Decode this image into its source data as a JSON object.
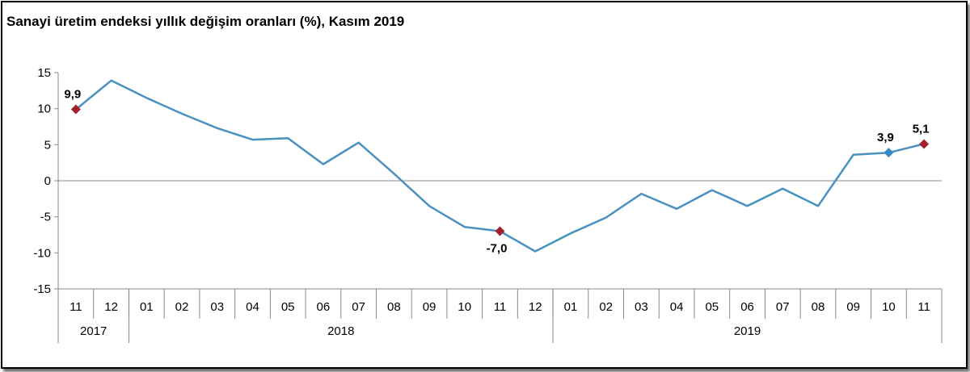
{
  "chart_data": {
    "type": "line",
    "title": "Sanayi üretim endeksi yıllık değişim oranları (%), Kasım 2019",
    "ylim": [
      -15,
      15
    ],
    "yticks": [
      "15",
      "10",
      "5",
      "0",
      "-5",
      "-10",
      "-15"
    ],
    "ytick_values": [
      15,
      10,
      5,
      0,
      -5,
      -10,
      -15
    ],
    "categories": [
      "11",
      "12",
      "01",
      "02",
      "03",
      "04",
      "05",
      "06",
      "07",
      "08",
      "09",
      "10",
      "11",
      "12",
      "01",
      "02",
      "03",
      "04",
      "05",
      "06",
      "07",
      "08",
      "09",
      "10",
      "11"
    ],
    "year_groups": [
      {
        "label": "2017",
        "count": 2
      },
      {
        "label": "2018",
        "count": 12
      },
      {
        "label": "2019",
        "count": 11
      }
    ],
    "series": [
      {
        "color": "#4a90c0",
        "values": [
          9.9,
          13.9,
          11.5,
          9.3,
          7.3,
          5.7,
          5.9,
          2.3,
          5.3,
          1.0,
          -3.5,
          -6.4,
          -7.0,
          -9.8,
          -7.3,
          -5.1,
          -1.8,
          -3.9,
          -1.3,
          -3.5,
          -1.1,
          -3.5,
          3.6,
          3.9,
          5.1
        ]
      }
    ],
    "highlights": [
      {
        "index": 0,
        "label": "9,9",
        "color": "#a31f2a"
      },
      {
        "index": 12,
        "label": "-7,0",
        "color": "#a31f2a"
      },
      {
        "index": 23,
        "label": "3,9",
        "color": "#3a8ac8"
      },
      {
        "index": 24,
        "label": "5,1",
        "color": "#a31f2a"
      }
    ],
    "grid": false,
    "legend": "none"
  }
}
